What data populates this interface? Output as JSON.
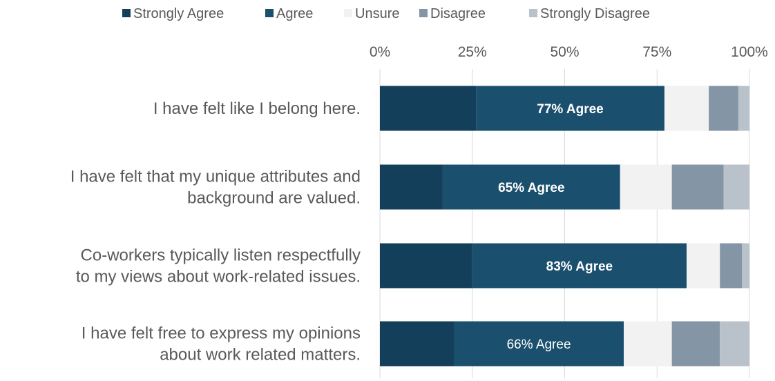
{
  "chart_data": {
    "type": "bar",
    "orientation": "horizontal",
    "stacked": true,
    "categories": [
      [
        "I have felt like I belong here."
      ],
      [
        "I have felt that my unique attributes and",
        "background are valued."
      ],
      [
        "Co-workers typically listen respectfully",
        "to my views about work-related issues."
      ],
      [
        "I have felt free to express my opinions",
        "about work related matters."
      ]
    ],
    "series": [
      {
        "name": "Strongly Agree",
        "color": "#143f5a",
        "values": [
          26,
          17,
          25,
          20
        ]
      },
      {
        "name": "Agree",
        "color": "#1b4f6e",
        "values": [
          51,
          48,
          58,
          46
        ]
      },
      {
        "name": "Unsure",
        "color": "#f2f2f2",
        "values": [
          12,
          14,
          9,
          13
        ]
      },
      {
        "name": "Disagree",
        "color": "#8496a6",
        "values": [
          8,
          14,
          6,
          13
        ]
      },
      {
        "name": "Strongly Disagree",
        "color": "#b9c2cb",
        "values": [
          3,
          7,
          2,
          8
        ]
      }
    ],
    "bar_labels": [
      "77% Agree",
      "65% Agree",
      "83% Agree",
      "66% Agree"
    ],
    "bar_label_bold": [
      true,
      true,
      true,
      false
    ],
    "xticks": [
      "0%",
      "25%",
      "50%",
      "75%",
      "100%"
    ],
    "xlim": [
      0,
      100
    ],
    "x_axis_position": "top",
    "grid": true,
    "legend_position": "top",
    "title": "",
    "xlabel": "",
    "ylabel": ""
  }
}
